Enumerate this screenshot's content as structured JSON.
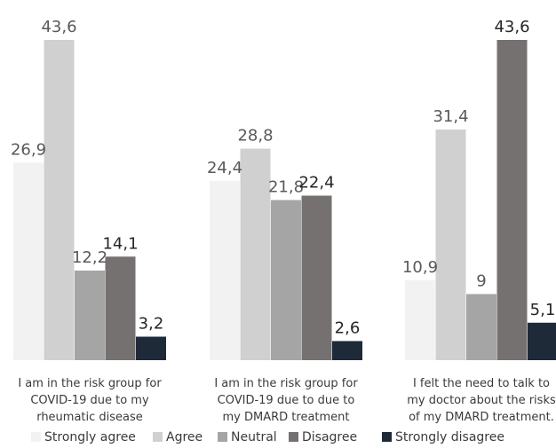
{
  "chart_data": {
    "type": "bar",
    "categories": [
      [
        "I am in the risk group for",
        "COVID-19 due to my",
        "rheumatic disease"
      ],
      [
        "I am in the risk group for",
        "COVID-19 due to due to",
        "my DMARD treatment"
      ],
      [
        "I felt the need to talk to",
        "my doctor about the risks",
        "of my DMARD treatment."
      ]
    ],
    "series": [
      {
        "name": "Strongly agree",
        "color": "#f2f2f2",
        "label_color": "#595959",
        "labels": [
          "26,9",
          "24,4",
          "10,9"
        ],
        "values": [
          26.9,
          24.4,
          10.9
        ]
      },
      {
        "name": "Agree",
        "color": "#d0d0d0",
        "label_color": "#595959",
        "labels": [
          "43,6",
          "28,8",
          "31,4"
        ],
        "values": [
          43.6,
          28.8,
          31.4
        ]
      },
      {
        "name": "Neutral",
        "color": "#a5a5a5",
        "label_color": "#595959",
        "labels": [
          "12,2",
          "21,8",
          "9"
        ],
        "values": [
          12.2,
          21.8,
          9
        ]
      },
      {
        "name": "Disagree",
        "color": "#767171",
        "label_color": "#262626",
        "labels": [
          "14,1",
          "22,4",
          "43,6"
        ],
        "values": [
          14.1,
          22.4,
          43.6
        ]
      },
      {
        "name": "Strongly disagree",
        "color": "#1f2a38",
        "label_color": "#262626",
        "labels": [
          "3,2",
          "2,6",
          "5,1"
        ],
        "values": [
          3.2,
          2.6,
          5.1
        ]
      }
    ],
    "ylim": [
      0,
      43.6
    ],
    "grid": false,
    "legend_position": "bottom"
  }
}
